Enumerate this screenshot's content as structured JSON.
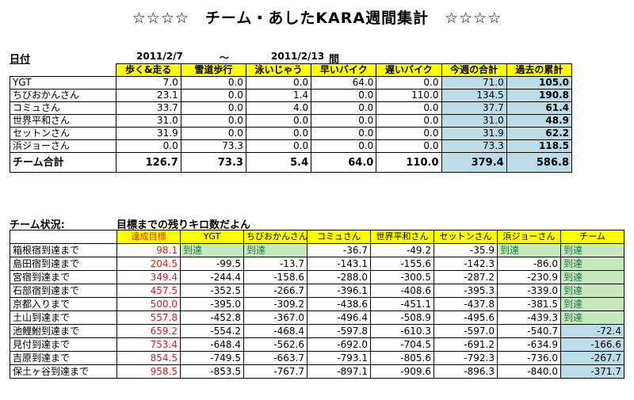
{
  "title": "☆☆☆☆　チーム・あしたKARA週間集計　☆☆☆☆",
  "date_label": "日付",
  "date_from": "2011/2/7",
  "date_sep": "〜",
  "date_to": "2011/2/13",
  "date_suffix": "間",
  "weekly": {
    "headers": [
      "歩く&走る",
      "雪道歩行",
      "泳いじゃう",
      "早いバイク",
      "遅いバイク",
      "今週の合計",
      "過去の累計"
    ],
    "rows": [
      {
        "name": "YGT",
        "values": [
          "7.0",
          "0.0",
          "0.0",
          "64.0",
          "0.0",
          "71.0",
          "105.0"
        ]
      },
      {
        "name": "ちびおかんさん",
        "values": [
          "23.1",
          "0.0",
          "1.4",
          "0.0",
          "110.0",
          "134.5",
          "190.8"
        ]
      },
      {
        "name": "コミュさん",
        "values": [
          "33.7",
          "0.0",
          "4.0",
          "0.0",
          "0.0",
          "37.7",
          "61.4"
        ]
      },
      {
        "name": "世界平和さん",
        "values": [
          "31.0",
          "0.0",
          "0.0",
          "0.0",
          "0.0",
          "31.0",
          "48.9"
        ]
      },
      {
        "name": "セットンさん",
        "values": [
          "31.9",
          "0.0",
          "0.0",
          "0.0",
          "0.0",
          "31.9",
          "62.2"
        ]
      },
      {
        "name": "浜ジョーさん",
        "values": [
          "0.0",
          "73.3",
          "0.0",
          "0.0",
          "0.0",
          "73.3",
          "118.5"
        ]
      }
    ],
    "total": {
      "name": "チーム合計",
      "values": [
        "126.7",
        "73.3",
        "5.4",
        "64.0",
        "110.0",
        "379.4",
        "586.8"
      ]
    }
  },
  "status": {
    "label": "チーム状況:",
    "subtitle": "目標までの残りキロ数だよん",
    "headers": [
      "達成目標",
      "YGT",
      "ちびおかんさん",
      "コミュさん",
      "世界平和さん",
      "セットンさん",
      "浜ジョーさん",
      "チーム"
    ],
    "rows": [
      {
        "name": "箱根宿到達まで",
        "target": "98.1",
        "values": [
          "到達",
          "到達",
          "-36.7",
          "-49.2",
          "-35.9",
          "到達",
          "到達"
        ]
      },
      {
        "name": "島田宿到達まで",
        "target": "204.5",
        "values": [
          "-99.5",
          "-13.7",
          "-143.1",
          "-155.6",
          "-142.3",
          "-86.0",
          "到達"
        ]
      },
      {
        "name": "宮宿到達まで",
        "target": "349.4",
        "values": [
          "-244.4",
          "-158.6",
          "-288.0",
          "-300.5",
          "-287.2",
          "-230.9",
          "到達"
        ]
      },
      {
        "name": "石部宿到達まで",
        "target": "457.5",
        "values": [
          "-352.5",
          "-266.7",
          "-396.1",
          "-408.6",
          "-395.3",
          "-339.0",
          "到達"
        ]
      },
      {
        "name": "京都入りまで",
        "target": "500.0",
        "values": [
          "-395.0",
          "-309.2",
          "-438.6",
          "-451.1",
          "-437.8",
          "-381.5",
          "到達"
        ]
      },
      {
        "name": "土山到達まで",
        "target": "557.8",
        "values": [
          "-452.8",
          "-367.0",
          "-496.4",
          "-508.9",
          "-495.6",
          "-439.3",
          "到達"
        ]
      },
      {
        "name": "池鯉鮒到達まで",
        "target": "659.2",
        "values": [
          "-554.2",
          "-468.4",
          "-597.8",
          "-610.3",
          "-597.0",
          "-540.7",
          "-72.4"
        ]
      },
      {
        "name": "見付到達まで",
        "target": "753.4",
        "values": [
          "-648.4",
          "-562.6",
          "-692.0",
          "-704.5",
          "-691.2",
          "-634.9",
          "-166.6"
        ]
      },
      {
        "name": "吉原到達まで",
        "target": "854.5",
        "values": [
          "-749.5",
          "-663.7",
          "-793.1",
          "-805.6",
          "-792.3",
          "-736.0",
          "-267.7"
        ]
      },
      {
        "name": "保土ヶ谷到達まで",
        "target": "958.5",
        "values": [
          "-853.5",
          "-767.7",
          "-897.1",
          "-909.6",
          "-896.3",
          "-840.0",
          "-371.7"
        ]
      }
    ]
  }
}
